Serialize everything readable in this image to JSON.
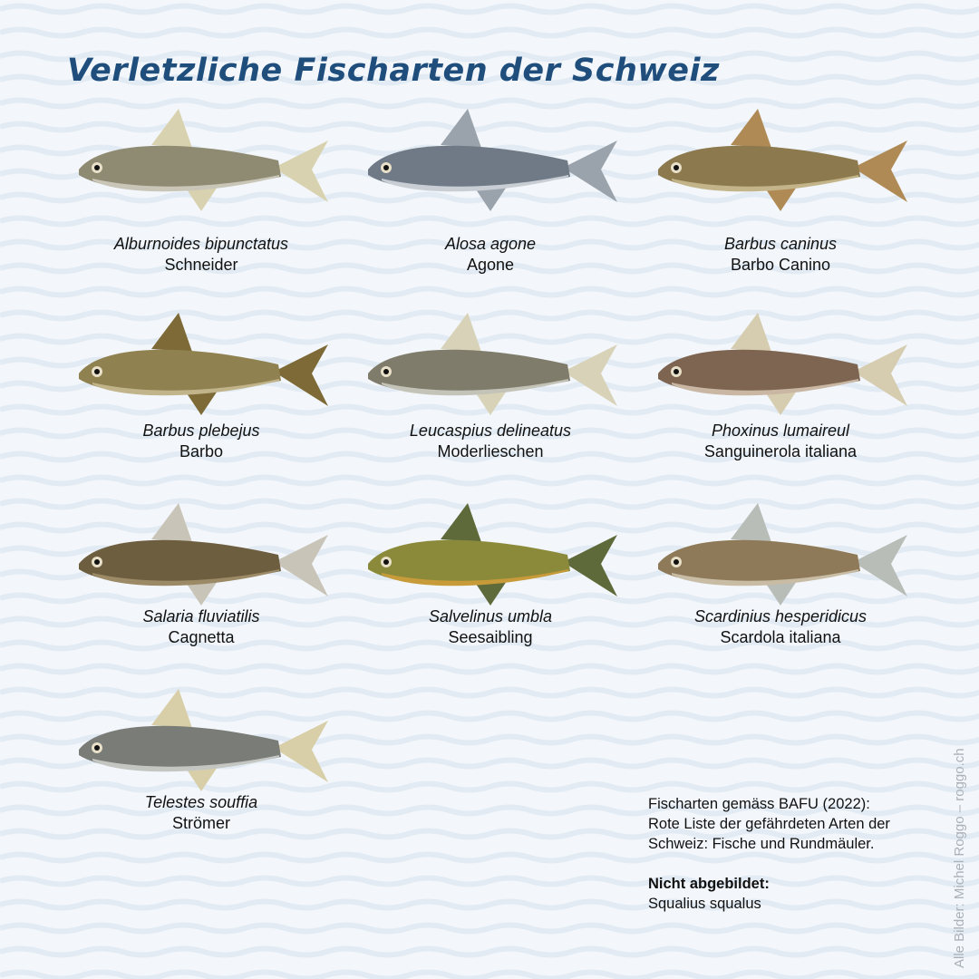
{
  "title": "Verletzliche Fischarten der Schweiz",
  "fish": [
    {
      "scientific": "Alburnoides bipunctatus",
      "common": "Schneider",
      "body": "#8f8a72",
      "fin": "#d9d2b0",
      "belly": "#c9c6b8"
    },
    {
      "scientific": "Alosa agone",
      "common": "Agone",
      "body": "#6f7a86",
      "fin": "#9aa3ab",
      "belly": "#c8ced4"
    },
    {
      "scientific": "Barbus caninus",
      "common": "Barbo Canino",
      "body": "#8c7a4e",
      "fin": "#b08a55",
      "belly": "#c4b48a"
    },
    {
      "scientific": "Barbus plebejus",
      "common": "Barbo",
      "body": "#8f8150",
      "fin": "#7d6a36",
      "belly": "#c2b48a"
    },
    {
      "scientific": "Leucaspius delineatus",
      "common": "Moderlieschen",
      "body": "#7f7c6c",
      "fin": "#d8d3b8",
      "belly": "#c4c3b8"
    },
    {
      "scientific": "Phoxinus lumaireul",
      "common": "Sanguinerola italiana",
      "body": "#7d6552",
      "fin": "#d6ccb0",
      "belly": "#c9b7a4"
    },
    {
      "scientific": "Salaria fluviatilis",
      "common": "Cagnetta",
      "body": "#6e5e40",
      "fin": "#c9c4b8",
      "belly": "#9c8a66"
    },
    {
      "scientific": "Salvelinus umbla",
      "common": "Seesaibling",
      "body": "#8a8a3a",
      "fin": "#5e6a3a",
      "belly": "#c79a3a"
    },
    {
      "scientific": "Scardinius hesperidicus",
      "common": "Scardola italiana",
      "body": "#8e7a58",
      "fin": "#b9bdb8",
      "belly": "#c8bca4"
    },
    {
      "scientific": "Telestes souffia",
      "common": "Strömer",
      "body": "#7a7c78",
      "fin": "#d8cfa8",
      "belly": "#c4c6c2"
    }
  ],
  "source_note": {
    "lines": [
      "Fischarten gemäss BAFU (2022):",
      "Rote Liste der gefährdeten Arten der",
      "Schweiz: Fische und Rundmäuler."
    ],
    "not_shown_label": "Nicht abgebildet:",
    "not_shown_species": "Squalius squalus"
  },
  "credit": "Alle Bilder: Michel Roggo – roggo.ch",
  "colors": {
    "title": "#1f4e7d",
    "background": "#f3f7fb",
    "wave": "#e2ebf3"
  }
}
